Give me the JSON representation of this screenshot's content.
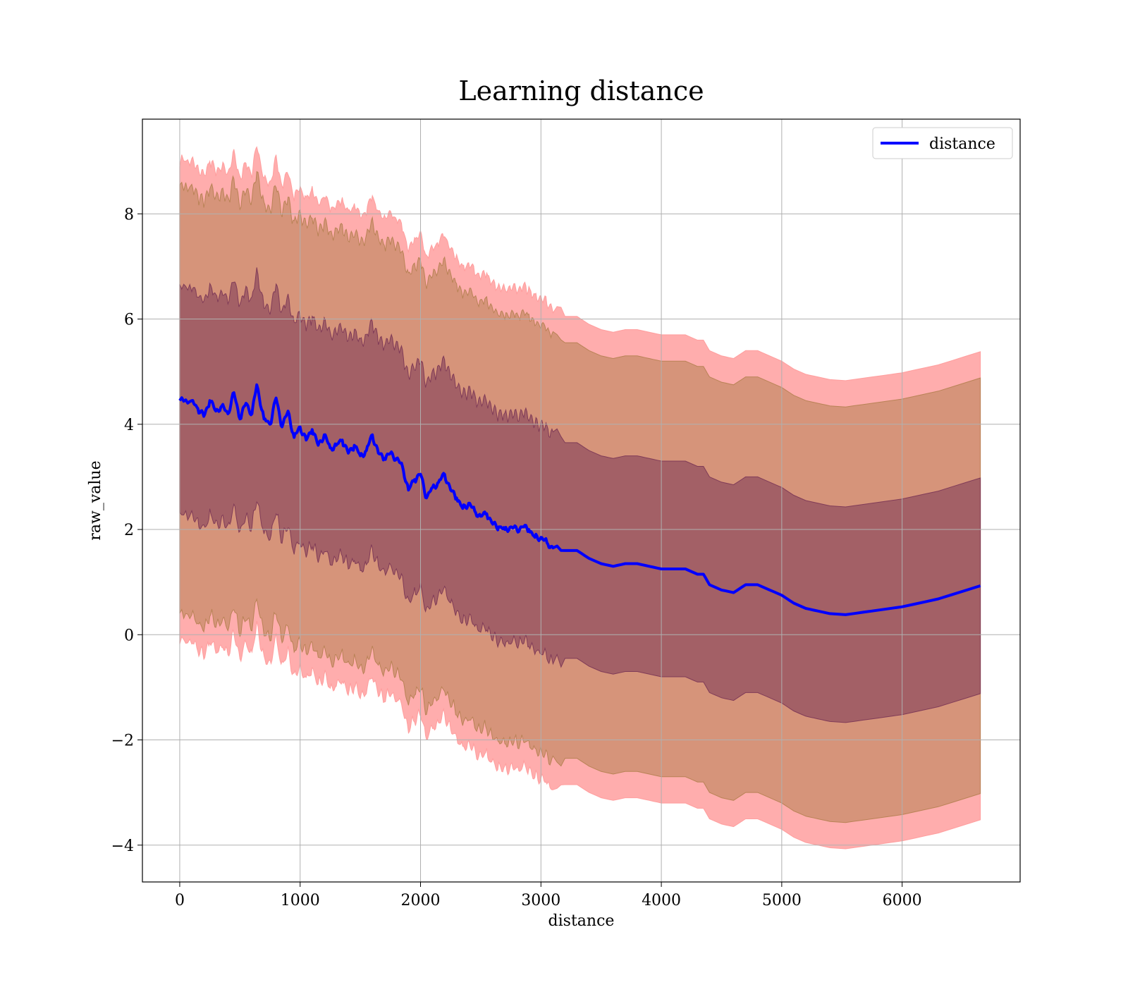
{
  "chart_data": {
    "type": "area",
    "title": "Learning distance",
    "xlabel": "distance",
    "ylabel": "raw_value",
    "xlim": [
      -310,
      6980
    ],
    "ylim": [
      -4.7,
      9.8
    ],
    "x_ticks": [
      0,
      1000,
      2000,
      3000,
      4000,
      5000,
      6000
    ],
    "x_tick_labels": [
      "0",
      "1000",
      "2000",
      "3000",
      "4000",
      "5000",
      "6000"
    ],
    "y_ticks": [
      -4,
      -2,
      0,
      2,
      4,
      6,
      8
    ],
    "y_tick_labels": [
      "−4",
      "−2",
      "0",
      "2",
      "4",
      "6",
      "8"
    ],
    "grid": true,
    "legend": {
      "position": "top-right",
      "entries": [
        "distance"
      ]
    },
    "bands": [
      {
        "name": "outer",
        "color": "#ff9999",
        "opacity": 0.8,
        "offset": 4.45
      },
      {
        "name": "middle",
        "color": "#b48050",
        "opacity": 0.55,
        "offset": 3.95
      },
      {
        "name": "inner",
        "color": "#7a3555",
        "opacity": 0.55,
        "offset": 2.05
      }
    ],
    "series": [
      {
        "name": "distance",
        "color": "#0000ff",
        "x": [
          0,
          100,
          150,
          200,
          250,
          300,
          350,
          400,
          450,
          500,
          550,
          600,
          640,
          700,
          750,
          800,
          850,
          900,
          950,
          1000,
          1050,
          1100,
          1150,
          1200,
          1250,
          1300,
          1350,
          1400,
          1450,
          1500,
          1550,
          1600,
          1650,
          1700,
          1750,
          1800,
          1850,
          1900,
          1950,
          2000,
          2050,
          2100,
          2150,
          2200,
          2250,
          2300,
          2350,
          2400,
          2450,
          2500,
          2550,
          2600,
          2650,
          2700,
          2750,
          2800,
          2850,
          2900,
          2950,
          3000,
          3050,
          3100,
          3200,
          3300,
          3400,
          3500,
          3600,
          3700,
          3800,
          3900,
          4000,
          4100,
          4200,
          4300,
          4350,
          4400,
          4500,
          4600,
          4700,
          4800,
          4900,
          5000,
          5100,
          5200,
          5300,
          5400,
          5530,
          5750,
          6000,
          6300,
          6650
        ],
        "y": [
          4.45,
          4.45,
          4.3,
          4.15,
          4.45,
          4.25,
          4.35,
          4.2,
          4.6,
          4.1,
          4.4,
          4.2,
          4.75,
          4.1,
          4.0,
          4.5,
          3.95,
          4.25,
          3.75,
          3.95,
          3.7,
          3.9,
          3.6,
          3.8,
          3.55,
          3.6,
          3.7,
          3.45,
          3.6,
          3.4,
          3.5,
          3.8,
          3.45,
          3.35,
          3.45,
          3.35,
          3.2,
          2.75,
          2.95,
          3.05,
          2.6,
          2.8,
          2.9,
          3.05,
          2.75,
          2.6,
          2.4,
          2.5,
          2.35,
          2.25,
          2.3,
          2.1,
          2.05,
          2.0,
          2.05,
          2.0,
          2.05,
          2.0,
          1.85,
          1.85,
          1.75,
          1.65,
          1.6,
          1.6,
          1.45,
          1.35,
          1.3,
          1.35,
          1.35,
          1.3,
          1.25,
          1.25,
          1.25,
          1.15,
          1.15,
          0.95,
          0.85,
          0.8,
          0.95,
          0.95,
          0.85,
          0.75,
          0.6,
          0.5,
          0.45,
          0.4,
          0.38,
          0.45,
          0.53,
          0.68,
          0.93
        ]
      }
    ]
  }
}
